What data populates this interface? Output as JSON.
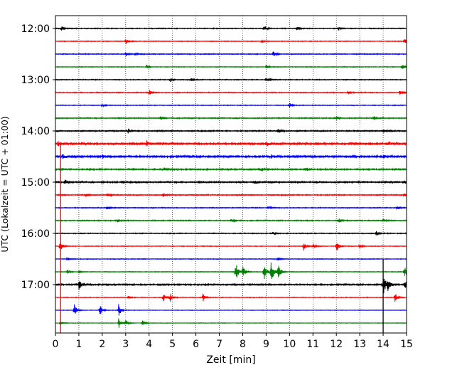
{
  "chart_data": {
    "type": "line",
    "title": "",
    "xlabel": "Zeit  [min]",
    "ylabel": "UTC (Lokalzeit = UTC + 01:00)",
    "xlim": [
      0,
      15
    ],
    "x_ticks": [
      "0",
      "1",
      "2",
      "3",
      "4",
      "5",
      "6",
      "7",
      "8",
      "9",
      "10",
      "11",
      "12",
      "13",
      "14",
      "15"
    ],
    "y_ticks": [
      "12:00",
      "13:00",
      "14:00",
      "15:00",
      "16:00",
      "17:00"
    ],
    "grid": {
      "x": "dotted",
      "y": false
    },
    "trace_interval_minutes": 15,
    "trace_colors": [
      "#000000",
      "#ff0000",
      "#0000ff",
      "#008000"
    ],
    "traces": [
      {
        "utc_start": "12:00",
        "color": "#000000",
        "noise": 0.5,
        "events": [
          [
            0.25,
            4
          ],
          [
            8.9,
            5
          ],
          [
            10.3,
            2.5
          ],
          [
            12.1,
            2.5
          ]
        ]
      },
      {
        "utc_start": "12:15",
        "color": "#ff0000",
        "noise": 0.4,
        "events": [
          [
            3.0,
            4
          ],
          [
            14.9,
            4
          ],
          [
            8.8,
            2
          ]
        ]
      },
      {
        "utc_start": "12:30",
        "color": "#0000ff",
        "noise": 0.5,
        "events": [
          [
            3.0,
            3
          ],
          [
            9.3,
            4
          ],
          [
            3.4,
            2
          ]
        ]
      },
      {
        "utc_start": "12:45",
        "color": "#008000",
        "noise": 0.4,
        "events": [
          [
            3.9,
            3
          ],
          [
            9.0,
            3
          ],
          [
            14.8,
            4
          ]
        ]
      },
      {
        "utc_start": "13:00",
        "color": "#000000",
        "noise": 0.5,
        "events": [
          [
            4.9,
            2.5
          ],
          [
            9.0,
            4
          ],
          [
            5.8,
            2
          ]
        ]
      },
      {
        "utc_start": "13:15",
        "color": "#ff0000",
        "noise": 0.5,
        "events": [
          [
            4.0,
            4
          ],
          [
            12.5,
            3
          ],
          [
            14.7,
            3
          ]
        ]
      },
      {
        "utc_start": "13:30",
        "color": "#0000ff",
        "noise": 0.4,
        "events": [
          [
            10.0,
            3.5
          ],
          [
            2.0,
            2
          ]
        ]
      },
      {
        "utc_start": "13:45",
        "color": "#008000",
        "noise": 0.6,
        "events": [
          [
            4.5,
            3
          ],
          [
            12.0,
            2.5
          ],
          [
            13.6,
            3
          ]
        ]
      },
      {
        "utc_start": "14:00",
        "color": "#000000",
        "noise": 0.7,
        "events": [
          [
            3.1,
            3
          ],
          [
            9.5,
            4
          ],
          [
            14.0,
            3
          ]
        ]
      },
      {
        "utc_start": "14:15",
        "color": "#ff0000",
        "noise": 1.0,
        "events": [
          [
            0.1,
            4
          ],
          [
            3.9,
            4
          ],
          [
            9.0,
            3
          ],
          [
            14.2,
            3.5
          ]
        ]
      },
      {
        "utc_start": "14:30",
        "color": "#0000ff",
        "noise": 1.1,
        "events": [
          [
            0.3,
            3.5
          ],
          [
            2.0,
            3
          ],
          [
            9.2,
            3.5
          ],
          [
            14.0,
            2.5
          ]
        ]
      },
      {
        "utc_start": "14:45",
        "color": "#008000",
        "noise": 0.8,
        "events": [
          [
            4.6,
            3
          ],
          [
            8.8,
            3
          ],
          [
            10.7,
            2.5
          ]
        ]
      },
      {
        "utc_start": "15:00",
        "color": "#000000",
        "noise": 0.8,
        "events": [
          [
            0.4,
            4
          ],
          [
            8.5,
            4
          ],
          [
            14.9,
            3
          ]
        ]
      },
      {
        "utc_start": "15:15",
        "color": "#ff0000",
        "noise": 0.6,
        "events": [
          [
            1.3,
            3
          ],
          [
            2.2,
            3
          ],
          [
            4.6,
            3
          ],
          [
            14.9,
            3
          ]
        ]
      },
      {
        "utc_start": "15:30",
        "color": "#0000ff",
        "noise": 0.5,
        "events": [
          [
            2.2,
            2.5
          ],
          [
            9.1,
            2.5
          ],
          [
            14.6,
            2.5
          ]
        ]
      },
      {
        "utc_start": "15:45",
        "color": "#008000",
        "noise": 0.6,
        "events": [
          [
            2.6,
            3
          ],
          [
            7.5,
            3
          ],
          [
            12.1,
            3
          ],
          [
            14.0,
            2.5
          ]
        ]
      },
      {
        "utc_start": "16:00",
        "color": "#000000",
        "noise": 0.5,
        "events": [
          [
            13.7,
            4
          ],
          [
            9.3,
            2
          ]
        ]
      },
      {
        "utc_start": "16:15",
        "color": "#ff0000",
        "noise": 0.4,
        "events": [
          [
            0.2,
            9
          ],
          [
            10.6,
            7
          ],
          [
            11.0,
            4
          ],
          [
            12.0,
            8
          ],
          [
            13.0,
            3
          ]
        ]
      },
      {
        "utc_start": "16:30",
        "color": "#0000ff",
        "noise": 0.4,
        "events": [
          [
            0.5,
            2
          ],
          [
            9.5,
            2
          ]
        ]
      },
      {
        "utc_start": "16:45",
        "color": "#008000",
        "noise": 0.4,
        "events": [
          [
            0.5,
            3
          ],
          [
            1.0,
            2
          ],
          [
            7.7,
            16
          ],
          [
            8.0,
            9
          ],
          [
            8.9,
            16
          ],
          [
            9.2,
            20
          ],
          [
            9.5,
            13
          ],
          [
            14.9,
            9
          ]
        ]
      },
      {
        "utc_start": "17:00",
        "color": "#000000",
        "noise": 0.8,
        "events": [
          [
            1.0,
            8
          ],
          [
            14.0,
            17
          ],
          [
            14.2,
            7
          ],
          [
            14.9,
            8
          ]
        ]
      },
      {
        "utc_start": "17:15",
        "color": "#ff0000",
        "noise": 0.4,
        "events": [
          [
            3.1,
            2
          ],
          [
            4.6,
            6
          ],
          [
            4.9,
            6
          ],
          [
            6.3,
            6
          ],
          [
            14.5,
            7
          ]
        ]
      },
      {
        "utc_start": "17:30",
        "color": "#0000ff",
        "noise": 0.3,
        "events": [
          [
            0.8,
            9
          ],
          [
            1.9,
            8
          ],
          [
            2.7,
            9
          ]
        ]
      },
      {
        "utc_start": "17:45",
        "color": "#008000",
        "noise": 0.3,
        "events": [
          [
            2.7,
            8
          ],
          [
            3.0,
            4
          ],
          [
            3.7,
            5
          ],
          [
            0.2,
            3
          ]
        ]
      }
    ]
  }
}
